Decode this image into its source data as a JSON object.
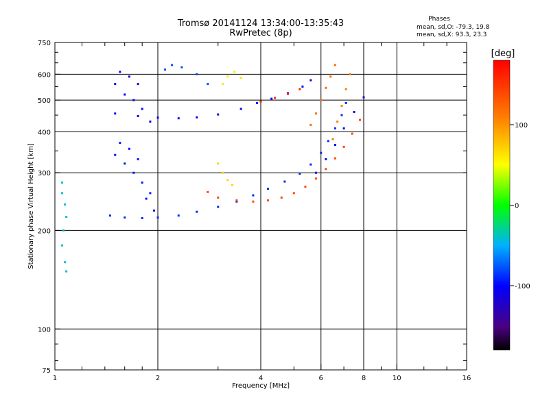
{
  "header": {
    "title_line1": "Tromsø 20141124 13:34:00-13:35:43",
    "title_line2": "RwPretec (8p)"
  },
  "phases_box": {
    "heading": "Phases",
    "line_o": "mean, sd,O: -79.3, 19.8",
    "line_x": "mean, sd,X:  93.3, 23.3"
  },
  "chart_data": {
    "type": "scatter",
    "xlabel": "Frequency [MHz]",
    "ylabel": "Stationary phase Virtual Height [km]",
    "x_scale": "log",
    "y_scale": "log",
    "xlim": [
      1,
      16
    ],
    "ylim": [
      75,
      750
    ],
    "x_ticks": [
      {
        "value": 1,
        "label": "1"
      },
      {
        "value": 2,
        "label": "2"
      },
      {
        "value": 4,
        "label": "4"
      },
      {
        "value": 6,
        "label": "6"
      },
      {
        "value": 8,
        "label": "8"
      },
      {
        "value": 10,
        "label": "10"
      },
      {
        "value": 16,
        "label": "16"
      }
    ],
    "y_ticks": [
      {
        "value": 75,
        "label": "75"
      },
      {
        "value": 100,
        "label": "100"
      },
      {
        "value": 200,
        "label": "200"
      },
      {
        "value": 300,
        "label": "300"
      },
      {
        "value": 400,
        "label": "400"
      },
      {
        "value": 500,
        "label": "500"
      },
      {
        "value": 600,
        "label": "600"
      },
      {
        "value": 750,
        "label": "750"
      }
    ],
    "x_gridlines": [
      2,
      4,
      6,
      8,
      10
    ],
    "y_gridlines": [
      100,
      200,
      300,
      400,
      500,
      600
    ],
    "colorbar": {
      "label": "[deg]",
      "range": [
        -180,
        180
      ],
      "ticks": [
        {
          "value": 100,
          "label": "100"
        },
        {
          "value": 0,
          "label": "0"
        },
        {
          "value": -100,
          "label": "-100"
        }
      ]
    },
    "series": [
      {
        "points": [
          [
            1.5,
            455
          ],
          [
            1.75,
            447
          ],
          [
            2.0,
            442
          ],
          [
            2.3,
            440
          ],
          [
            2.6,
            443
          ],
          [
            3.0,
            452
          ],
          [
            3.5,
            470
          ],
          [
            3.9,
            490
          ],
          [
            4.3,
            505
          ],
          [
            4.8,
            525
          ],
          [
            5.3,
            550
          ],
          [
            5.6,
            575
          ]
        ],
        "phase": -100
      },
      {
        "points": [
          [
            4.0,
            495
          ],
          [
            4.4,
            508
          ],
          [
            4.8,
            522
          ],
          [
            5.2,
            540
          ]
        ],
        "phase": 160
      },
      {
        "points": [
          [
            1.45,
            222
          ],
          [
            1.6,
            219
          ],
          [
            1.8,
            218
          ],
          [
            2.0,
            219
          ],
          [
            2.3,
            222
          ],
          [
            2.6,
            228
          ],
          [
            3.0,
            236
          ],
          [
            3.4,
            245
          ],
          [
            3.8,
            256
          ],
          [
            4.2,
            268
          ],
          [
            4.7,
            282
          ],
          [
            5.2,
            298
          ],
          [
            5.6,
            318
          ],
          [
            6.0,
            345
          ],
          [
            6.3,
            375
          ],
          [
            6.6,
            410
          ],
          [
            6.9,
            450
          ],
          [
            7.1,
            490
          ]
        ],
        "phase": -90
      },
      {
        "points": [
          [
            2.8,
            262
          ],
          [
            3.0,
            252
          ],
          [
            3.4,
            247
          ],
          [
            3.8,
            245
          ],
          [
            4.2,
            247
          ],
          [
            4.6,
            252
          ],
          [
            5.0,
            260
          ],
          [
            5.4,
            272
          ],
          [
            5.8,
            288
          ],
          [
            6.2,
            308
          ],
          [
            6.6,
            332
          ],
          [
            7.0,
            360
          ],
          [
            7.4,
            395
          ],
          [
            7.8,
            435
          ]
        ],
        "phase": 140
      },
      {
        "points": [
          [
            5.6,
            420
          ],
          [
            5.8,
            455
          ],
          [
            6.0,
            500
          ],
          [
            6.2,
            545
          ],
          [
            6.4,
            590
          ],
          [
            6.6,
            640
          ]
        ],
        "phase": 120
      },
      {
        "points": [
          [
            6.5,
            380
          ],
          [
            6.7,
            430
          ],
          [
            6.9,
            480
          ],
          [
            7.1,
            540
          ],
          [
            7.3,
            600
          ]
        ],
        "phase": 110
      },
      {
        "points": [
          [
            5.8,
            300
          ],
          [
            6.2,
            330
          ],
          [
            6.6,
            365
          ],
          [
            7.0,
            410
          ],
          [
            7.5,
            460
          ],
          [
            8.0,
            510
          ]
        ],
        "phase": -110
      },
      {
        "points": [
          [
            3.0,
            320
          ],
          [
            3.1,
            300
          ],
          [
            3.2,
            285
          ],
          [
            3.3,
            275
          ]
        ],
        "phase": 70
      },
      {
        "points": [
          [
            3.1,
            560
          ],
          [
            3.2,
            590
          ],
          [
            3.35,
            610
          ],
          [
            3.5,
            585
          ]
        ],
        "phase": 60
      },
      {
        "points": [
          [
            1.5,
            560
          ],
          [
            1.6,
            520
          ],
          [
            1.7,
            500
          ],
          [
            1.8,
            470
          ],
          [
            1.9,
            430
          ],
          [
            1.55,
            610
          ],
          [
            1.65,
            590
          ],
          [
            1.75,
            560
          ]
        ],
        "phase": -105
      },
      {
        "points": [
          [
            1.5,
            340
          ],
          [
            1.6,
            320
          ],
          [
            1.7,
            300
          ],
          [
            1.8,
            280
          ],
          [
            1.9,
            260
          ],
          [
            1.55,
            370
          ],
          [
            1.65,
            355
          ],
          [
            1.75,
            330
          ],
          [
            1.85,
            250
          ],
          [
            1.95,
            230
          ]
        ],
        "phase": -95
      },
      {
        "points": [
          [
            1.05,
            280
          ],
          [
            1.05,
            260
          ],
          [
            1.07,
            240
          ],
          [
            1.08,
            220
          ],
          [
            1.06,
            200
          ],
          [
            1.05,
            180
          ],
          [
            1.07,
            160
          ],
          [
            1.08,
            150
          ]
        ],
        "phase": -40
      },
      {
        "points": [
          [
            2.1,
            620
          ],
          [
            2.2,
            640
          ],
          [
            2.35,
            630
          ],
          [
            2.6,
            600
          ],
          [
            2.8,
            560
          ]
        ],
        "phase": -80
      }
    ]
  }
}
